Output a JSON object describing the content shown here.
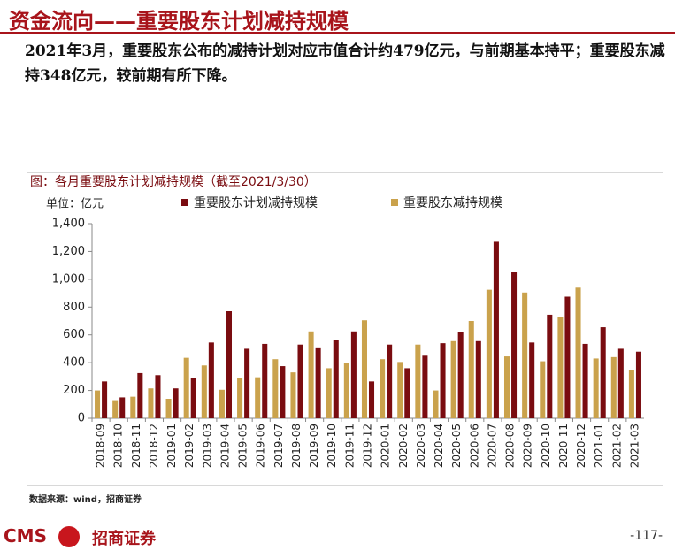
{
  "header": {
    "title": "资金流向——重要股东计划减持规模"
  },
  "body": "2021年3月，重要股东公布的减持计划对应市值合计约479亿元，与前期基本持平；重要股东减持348亿元，较前期有所下降。",
  "chart_data": {
    "type": "bar",
    "title": "图：各月重要股东计划减持规模（截至2021/3/30）",
    "y_label": "单位：亿元",
    "categories": [
      "2018-09",
      "2018-10",
      "2018-11",
      "2018-12",
      "2019-01",
      "2019-02",
      "2019-03",
      "2019-04",
      "2019-05",
      "2019-06",
      "2019-07",
      "2019-08",
      "2019-09",
      "2019-10",
      "2019-11",
      "2019-12",
      "2020-01",
      "2020-02",
      "2020-03",
      "2020-04",
      "2020-05",
      "2020-06",
      "2020-07",
      "2020-08",
      "2020-09",
      "2020-10",
      "2020-11",
      "2020-12",
      "2021-01",
      "2021-02",
      "2021-03"
    ],
    "series": [
      {
        "name": "重要股东计划减持规模",
        "color": "#7a0c10",
        "values": [
          265,
          150,
          325,
          310,
          215,
          290,
          545,
          770,
          500,
          535,
          375,
          530,
          510,
          565,
          625,
          265,
          530,
          360,
          450,
          540,
          620,
          555,
          1270,
          1050,
          545,
          745,
          875,
          535,
          655,
          500,
          479
        ]
      },
      {
        "name": "重要股东减持规模",
        "color": "#caa24c",
        "values": [
          200,
          130,
          155,
          215,
          140,
          435,
          380,
          205,
          290,
          295,
          425,
          330,
          625,
          360,
          400,
          705,
          425,
          405,
          530,
          200,
          555,
          700,
          925,
          445,
          905,
          410,
          730,
          940,
          430,
          440,
          348
        ]
      }
    ],
    "ylim": [
      0,
      1400
    ],
    "yticks": [
      0,
      200,
      400,
      600,
      800,
      {
        "value": 1000,
        "label": "1,000"
      },
      {
        "value": 1200,
        "label": "1,200"
      },
      {
        "value": 1400,
        "label": "1,400"
      }
    ],
    "grid": false
  },
  "source": "数据来源：wind，招商证券",
  "footer": {
    "brand": "CMS",
    "brand_cn": "招商证券",
    "page": "-117-"
  }
}
